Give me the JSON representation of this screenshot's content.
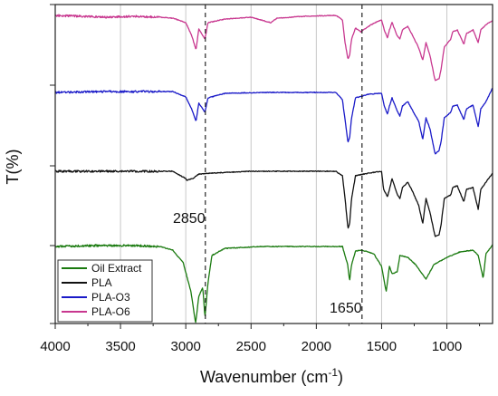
{
  "chart_data": {
    "type": "line",
    "title": "",
    "xlabel_main": "Wavenumber (cm",
    "xlabel_sup": "-1",
    "xlabel_close": ")",
    "ylabel": "T(%)",
    "xlim": [
      4000,
      650
    ],
    "x_reversed": true,
    "xticks": [
      "4000",
      "3500",
      "3000",
      "2500",
      "2000",
      "1500",
      "1000"
    ],
    "xtick_values": [
      4000,
      3500,
      3000,
      2500,
      2000,
      1500,
      1000
    ],
    "grid": true,
    "legend_position": "bottom-left",
    "annotations": [
      {
        "text": "2850",
        "x": 2850
      },
      {
        "text": "1650",
        "x": 1650
      }
    ],
    "series": [
      {
        "name": "Oil Extract",
        "color": "#1a7a0f",
        "baseline": 272,
        "spectrum": [
          [
            4000,
            0
          ],
          [
            3700,
            -1
          ],
          [
            3400,
            -1
          ],
          [
            3200,
            0
          ],
          [
            3100,
            4
          ],
          [
            3020,
            18
          ],
          [
            2960,
            50
          ],
          [
            2925,
            85
          ],
          [
            2900,
            55
          ],
          [
            2870,
            45
          ],
          [
            2853,
            78
          ],
          [
            2830,
            40
          ],
          [
            2800,
            10
          ],
          [
            2700,
            2
          ],
          [
            2400,
            0
          ],
          [
            2000,
            0
          ],
          [
            1800,
            0
          ],
          [
            1760,
            20
          ],
          [
            1745,
            38
          ],
          [
            1730,
            20
          ],
          [
            1700,
            5
          ],
          [
            1650,
            4
          ],
          [
            1560,
            8
          ],
          [
            1500,
            22
          ],
          [
            1465,
            50
          ],
          [
            1440,
            22
          ],
          [
            1420,
            30
          ],
          [
            1380,
            28
          ],
          [
            1360,
            10
          ],
          [
            1300,
            12
          ],
          [
            1240,
            20
          ],
          [
            1160,
            36
          ],
          [
            1100,
            20
          ],
          [
            1000,
            12
          ],
          [
            900,
            6
          ],
          [
            800,
            4
          ],
          [
            760,
            10
          ],
          [
            722,
            35
          ],
          [
            700,
            8
          ],
          [
            650,
            -2
          ]
        ]
      },
      {
        "name": "PLA",
        "color": "#111111",
        "baseline": 189,
        "spectrum": [
          [
            4000,
            0
          ],
          [
            3600,
            0
          ],
          [
            3100,
            0
          ],
          [
            3000,
            8
          ],
          [
            2995,
            10
          ],
          [
            2945,
            8
          ],
          [
            2900,
            3
          ],
          [
            2800,
            2
          ],
          [
            2500,
            0
          ],
          [
            2100,
            0
          ],
          [
            1850,
            0
          ],
          [
            1800,
            5
          ],
          [
            1780,
            30
          ],
          [
            1758,
            63
          ],
          [
            1745,
            58
          ],
          [
            1730,
            30
          ],
          [
            1700,
            5
          ],
          [
            1600,
            2
          ],
          [
            1500,
            0
          ],
          [
            1485,
            20
          ],
          [
            1455,
            28
          ],
          [
            1440,
            20
          ],
          [
            1420,
            8
          ],
          [
            1382,
            25
          ],
          [
            1360,
            30
          ],
          [
            1340,
            18
          ],
          [
            1300,
            12
          ],
          [
            1270,
            20
          ],
          [
            1215,
            38
          ],
          [
            1185,
            58
          ],
          [
            1160,
            30
          ],
          [
            1130,
            45
          ],
          [
            1090,
            72
          ],
          [
            1060,
            70
          ],
          [
            1045,
            60
          ],
          [
            1020,
            30
          ],
          [
            970,
            26
          ],
          [
            955,
            18
          ],
          [
            920,
            16
          ],
          [
            870,
            34
          ],
          [
            850,
            20
          ],
          [
            800,
            18
          ],
          [
            760,
            42
          ],
          [
            740,
            20
          ],
          [
            700,
            12
          ],
          [
            650,
            2
          ]
        ]
      },
      {
        "name": "PLA-O3",
        "color": "#1a1ac8",
        "baseline": 102,
        "spectrum": [
          [
            4000,
            0
          ],
          [
            3600,
            -1
          ],
          [
            3100,
            -1
          ],
          [
            3000,
            5
          ],
          [
            2955,
            18
          ],
          [
            2922,
            32
          ],
          [
            2900,
            12
          ],
          [
            2853,
            22
          ],
          [
            2830,
            6
          ],
          [
            2700,
            1
          ],
          [
            2400,
            0
          ],
          [
            2100,
            0
          ],
          [
            1850,
            0
          ],
          [
            1800,
            8
          ],
          [
            1780,
            30
          ],
          [
            1758,
            55
          ],
          [
            1745,
            50
          ],
          [
            1730,
            28
          ],
          [
            1700,
            6
          ],
          [
            1600,
            2
          ],
          [
            1500,
            1
          ],
          [
            1480,
            15
          ],
          [
            1455,
            24
          ],
          [
            1440,
            15
          ],
          [
            1420,
            6
          ],
          [
            1382,
            20
          ],
          [
            1360,
            26
          ],
          [
            1340,
            15
          ],
          [
            1300,
            10
          ],
          [
            1270,
            18
          ],
          [
            1215,
            32
          ],
          [
            1185,
            52
          ],
          [
            1160,
            28
          ],
          [
            1130,
            40
          ],
          [
            1090,
            68
          ],
          [
            1060,
            64
          ],
          [
            1045,
            55
          ],
          [
            1020,
            28
          ],
          [
            970,
            22
          ],
          [
            955,
            15
          ],
          [
            920,
            14
          ],
          [
            870,
            30
          ],
          [
            850,
            18
          ],
          [
            800,
            14
          ],
          [
            760,
            38
          ],
          [
            740,
            18
          ],
          [
            700,
            10
          ],
          [
            650,
            -5
          ]
        ]
      },
      {
        "name": "PLA-O6",
        "color": "#c8378f",
        "baseline": 17,
        "spectrum": [
          [
            4000,
            0
          ],
          [
            3800,
            1
          ],
          [
            3600,
            2
          ],
          [
            3400,
            1
          ],
          [
            3200,
            2
          ],
          [
            3100,
            3
          ],
          [
            3000,
            8
          ],
          [
            2955,
            22
          ],
          [
            2922,
            38
          ],
          [
            2900,
            15
          ],
          [
            2853,
            26
          ],
          [
            2830,
            8
          ],
          [
            2700,
            4
          ],
          [
            2500,
            2
          ],
          [
            2350,
            8
          ],
          [
            2300,
            3
          ],
          [
            2100,
            1
          ],
          [
            1850,
            0
          ],
          [
            1800,
            5
          ],
          [
            1780,
            30
          ],
          [
            1758,
            48
          ],
          [
            1745,
            44
          ],
          [
            1730,
            26
          ],
          [
            1700,
            14
          ],
          [
            1660,
            18
          ],
          [
            1640,
            16
          ],
          [
            1600,
            12
          ],
          [
            1550,
            8
          ],
          [
            1500,
            5
          ],
          [
            1480,
            16
          ],
          [
            1455,
            25
          ],
          [
            1440,
            16
          ],
          [
            1420,
            8
          ],
          [
            1382,
            22
          ],
          [
            1360,
            26
          ],
          [
            1340,
            16
          ],
          [
            1300,
            12
          ],
          [
            1270,
            20
          ],
          [
            1215,
            36
          ],
          [
            1185,
            50
          ],
          [
            1160,
            30
          ],
          [
            1130,
            44
          ],
          [
            1090,
            72
          ],
          [
            1060,
            70
          ],
          [
            1045,
            60
          ],
          [
            1020,
            35
          ],
          [
            970,
            26
          ],
          [
            955,
            18
          ],
          [
            920,
            16
          ],
          [
            870,
            32
          ],
          [
            850,
            20
          ],
          [
            800,
            16
          ],
          [
            760,
            30
          ],
          [
            740,
            16
          ],
          [
            700,
            10
          ],
          [
            650,
            6
          ]
        ]
      }
    ]
  }
}
